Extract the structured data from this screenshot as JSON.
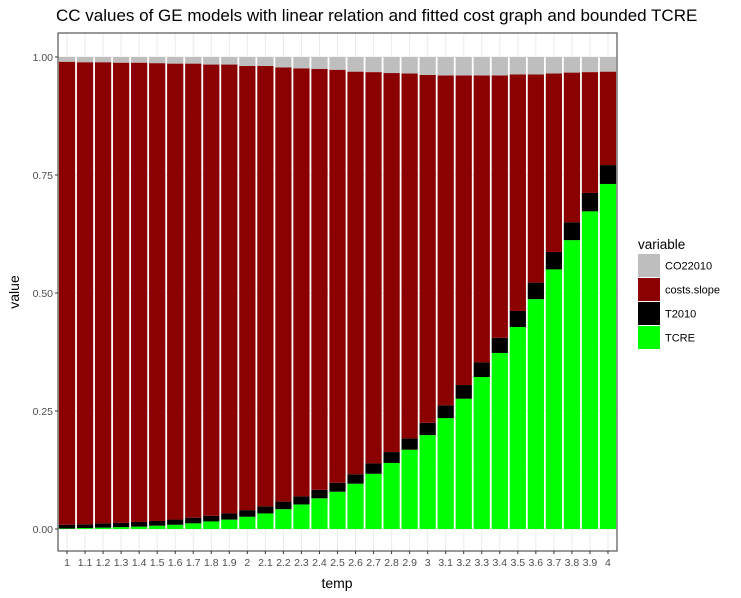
{
  "chart_data": {
    "type": "bar",
    "stacked": true,
    "title": "CC values of GE models with linear relation and fitted cost graph and bounded TCRE",
    "xlabel": "temp",
    "ylabel": "value",
    "ylim": [
      0,
      1
    ],
    "y_ticks": [
      "0.00",
      "0.25",
      "0.50",
      "0.75",
      "1.00"
    ],
    "y_tick_values": [
      0,
      0.25,
      0.5,
      0.75,
      1.0
    ],
    "grid": true,
    "legend_position": "right",
    "legend_title": "variable",
    "categories": [
      "1",
      "1.1",
      "1.2",
      "1.3",
      "1.4",
      "1.5",
      "1.6",
      "1.7",
      "1.8",
      "1.9",
      "2",
      "2.1",
      "2.2",
      "2.3",
      "2.4",
      "2.5",
      "2.6",
      "2.7",
      "2.8",
      "2.9",
      "3",
      "3.1",
      "3.2",
      "3.3",
      "3.4",
      "3.5",
      "3.6",
      "3.7",
      "3.8",
      "3.9",
      "4"
    ],
    "series": [
      {
        "name": "TCRE",
        "color": "#00ff00",
        "values": [
          0.001,
          0.002,
          0.003,
          0.004,
          0.005,
          0.007,
          0.009,
          0.012,
          0.016,
          0.02,
          0.026,
          0.033,
          0.042,
          0.052,
          0.065,
          0.079,
          0.096,
          0.117,
          0.14,
          0.168,
          0.199,
          0.235,
          0.276,
          0.322,
          0.373,
          0.428,
          0.487,
          0.55,
          0.612,
          0.673,
          0.731
        ]
      },
      {
        "name": "T2010",
        "color": "#000000",
        "values": [
          0.008,
          0.008,
          0.009,
          0.009,
          0.01,
          0.01,
          0.011,
          0.012,
          0.012,
          0.013,
          0.014,
          0.015,
          0.016,
          0.017,
          0.018,
          0.019,
          0.02,
          0.022,
          0.023,
          0.024,
          0.026,
          0.027,
          0.029,
          0.031,
          0.032,
          0.034,
          0.035,
          0.037,
          0.038,
          0.039,
          0.04
        ]
      },
      {
        "name": "costs.slope",
        "color": "#8b0000",
        "values": [
          0.981,
          0.979,
          0.977,
          0.975,
          0.973,
          0.97,
          0.966,
          0.962,
          0.956,
          0.951,
          0.941,
          0.933,
          0.92,
          0.907,
          0.892,
          0.875,
          0.853,
          0.829,
          0.803,
          0.773,
          0.737,
          0.699,
          0.656,
          0.608,
          0.556,
          0.501,
          0.441,
          0.378,
          0.317,
          0.256,
          0.198
        ]
      },
      {
        "name": "CO22010",
        "color": "#bebebe",
        "values": [
          0.01,
          0.011,
          0.011,
          0.012,
          0.012,
          0.013,
          0.014,
          0.014,
          0.016,
          0.016,
          0.019,
          0.019,
          0.022,
          0.024,
          0.025,
          0.027,
          0.031,
          0.032,
          0.034,
          0.035,
          0.038,
          0.039,
          0.039,
          0.039,
          0.039,
          0.037,
          0.037,
          0.035,
          0.033,
          0.032,
          0.031
        ]
      }
    ],
    "legend_entries": [
      "CO22010",
      "costs.slope",
      "T2010",
      "TCRE"
    ]
  }
}
